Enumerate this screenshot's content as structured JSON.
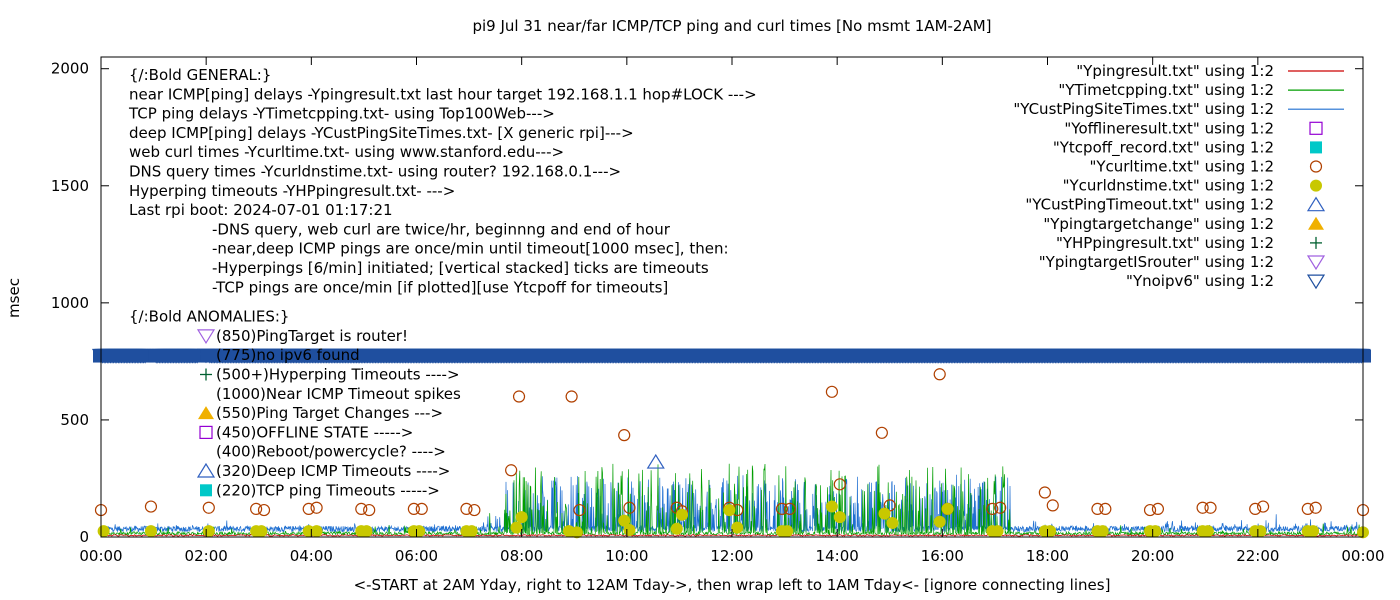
{
  "chart_data": {
    "type": "line",
    "title": "pi9 Jul 31  near/far ICMP/TCP ping and curl times [No msmt 1AM-2AM]",
    "xlabel": "<-START at 2AM Yday, right to 12AM Tday->, then wrap left to 1AM Tday<- [ignore connecting lines]",
    "ylabel": "msec",
    "xlim": [
      0,
      24
    ],
    "ylim": [
      0,
      2050
    ],
    "grid": false,
    "legend_position": "top-right",
    "x_ticks": [
      0,
      2,
      4,
      6,
      8,
      10,
      12,
      14,
      16,
      18,
      20,
      22,
      24
    ],
    "x_tick_labels": [
      "00:00",
      "02:00",
      "04:00",
      "06:00",
      "08:00",
      "10:00",
      "12:00",
      "14:00",
      "16:00",
      "18:00",
      "20:00",
      "22:00",
      "00:00"
    ],
    "y_ticks": [
      0,
      500,
      1000,
      1500,
      2000
    ],
    "y_tick_labels": [
      "0",
      "500",
      "1000",
      "1500",
      "2000"
    ],
    "legend": [
      {
        "label": "\"Ypingresult.txt\" using 1:2",
        "marker": "line",
        "color": "#cc0000"
      },
      {
        "label": "\"YTimetcpping.txt\" using 1:2",
        "marker": "line",
        "color": "#009e00"
      },
      {
        "label": "\"YCustPingSiteTimes.txt\" using 1:2",
        "marker": "line",
        "color": "#1f6fd1"
      },
      {
        "label": "\"Yofflineresult.txt\" using 1:2",
        "marker": "open-square",
        "color": "#9400d3"
      },
      {
        "label": "\"Ytcpoff_record.txt\" using 1:2",
        "marker": "filled-square",
        "color": "#00c8c8"
      },
      {
        "label": "\"Ycurltime.txt\" using 1:2",
        "marker": "open-circle",
        "color": "#b04000"
      },
      {
        "label": "\"Ycurldnstime.txt\" using 1:2",
        "marker": "filled-circle",
        "color": "#c8c800"
      },
      {
        "label": "\"YCustPingTimeout.txt\" using 1:2",
        "marker": "open-triangle-up",
        "color": "#3060c0"
      },
      {
        "label": "\"Ypingtargetchange\" using 1:2",
        "marker": "filled-triangle-up",
        "color": "#f0b000"
      },
      {
        "label": "\"YHPpingresult.txt\" using 1:2",
        "marker": "plus",
        "color": "#006030"
      },
      {
        "label": "\"YpingtargetISrouter\" using 1:2",
        "marker": "open-triangle-down",
        "color": "#a060e0"
      },
      {
        "label": "\"Ynoipv6\" using 1:2",
        "marker": "open-triangle-down",
        "color": "#1f4f9f"
      }
    ],
    "annotations": {
      "general_lines": [
        "{/:Bold GENERAL:}",
        "near ICMP[ping] delays -Ypingresult.txt last hour target 192.168.1.1 hop#LOCK --->",
        "TCP ping delays -YTimetcpping.txt- using Top100Web--->",
        "deep ICMP[ping] delays -YCustPingSiteTimes.txt- [X generic rpi]--->",
        "web curl times -Ycurltime.txt- using www.stanford.edu--->",
        "DNS query times -Ycurldnstime.txt- using router? 192.168.0.1--->",
        "Hyperping timeouts -YHPpingresult.txt- --->",
        "Last rpi boot: 2024-07-01 01:17:21"
      ],
      "notes": [
        "-DNS query, web curl are twice/hr, beginnng and end of hour",
        "-near,deep ICMP pings are once/min until timeout[1000 msec], then:",
        "  -Hyperpings [6/min] initiated; [vertical stacked] ticks are timeouts",
        "-TCP pings are once/min [if plotted][use Ytcpoff for timeouts]"
      ],
      "anomalies_title": "{/:Bold ANOMALIES:}",
      "anomalies": [
        {
          "text": "(850)PingTarget is router!",
          "marker": "open-triangle-down",
          "color": "#a060e0"
        },
        {
          "text": "(775)no ipv6 found",
          "marker": "open-triangle-down",
          "color": "#1f4f9f"
        },
        {
          "text": "(500+)Hyperping Timeouts ---->",
          "marker": "plus",
          "color": "#006030"
        },
        {
          "text": "(1000)Near ICMP Timeout spikes",
          "marker": "none",
          "color": "#cc0000"
        },
        {
          "text": "(550)Ping Target Changes --->",
          "marker": "filled-triangle-up",
          "color": "#f0b000"
        },
        {
          "text": "(450)OFFLINE STATE ----->",
          "marker": "open-square",
          "color": "#9400d3"
        },
        {
          "text": "(400)Reboot/powercycle? ---->",
          "marker": "none",
          "color": "#000000"
        },
        {
          "text": "(320)Deep ICMP Timeouts ---->",
          "marker": "open-triangle-up",
          "color": "#3060c0"
        },
        {
          "text": "(220)TCP ping Timeouts ----->",
          "marker": "filled-square",
          "color": "#00c8c8"
        }
      ]
    },
    "series": [
      {
        "name": "\"Ynoipv6\" using 1:2",
        "type": "scatter-dense",
        "y": 775,
        "x_range": [
          0,
          24
        ],
        "gaps": [
          [
            0.85,
            1.05
          ],
          [
            1.85,
            2.05
          ]
        ],
        "color": "#1f4f9f"
      },
      {
        "name": "\"YCustPingTimeout.txt\" using 1:2",
        "type": "scatter",
        "points": [
          [
            10.55,
            320
          ]
        ],
        "color": "#3060c0"
      },
      {
        "name": "\"Ycurltime.txt\" using 1:2",
        "type": "scatter",
        "color": "#b04000",
        "points": [
          [
            0,
            115
          ],
          [
            0.95,
            130
          ],
          [
            2.05,
            125
          ],
          [
            2.95,
            120
          ],
          [
            3.1,
            115
          ],
          [
            3.95,
            120
          ],
          [
            4.1,
            125
          ],
          [
            4.95,
            120
          ],
          [
            5.1,
            115
          ],
          [
            5.95,
            120
          ],
          [
            6.1,
            120
          ],
          [
            6.95,
            120
          ],
          [
            7.1,
            115
          ],
          [
            7.8,
            285
          ],
          [
            7.95,
            600
          ],
          [
            8.95,
            600
          ],
          [
            9.1,
            115
          ],
          [
            9.95,
            435
          ],
          [
            10.05,
            125
          ],
          [
            10.95,
            125
          ],
          [
            11.05,
            110
          ],
          [
            11.95,
            125
          ],
          [
            12.1,
            115
          ],
          [
            12.95,
            120
          ],
          [
            13.1,
            120
          ],
          [
            13.9,
            620
          ],
          [
            14.05,
            225
          ],
          [
            14.85,
            445
          ],
          [
            15.0,
            135
          ],
          [
            15.95,
            695
          ],
          [
            16.1,
            120
          ],
          [
            16.95,
            120
          ],
          [
            17.1,
            125
          ],
          [
            17.95,
            190
          ],
          [
            18.1,
            135
          ],
          [
            18.95,
            120
          ],
          [
            19.1,
            120
          ],
          [
            19.95,
            115
          ],
          [
            20.1,
            120
          ],
          [
            20.95,
            125
          ],
          [
            21.1,
            125
          ],
          [
            21.95,
            120
          ],
          [
            22.1,
            130
          ],
          [
            22.95,
            120
          ],
          [
            23.1,
            125
          ],
          [
            24.0,
            115
          ]
        ]
      },
      {
        "name": "\"Ycurldnstime.txt\" using 1:2",
        "type": "scatter",
        "color": "#c8c800",
        "points": [
          [
            0.05,
            25
          ],
          [
            0.95,
            25
          ],
          [
            2.05,
            25
          ],
          [
            2.95,
            25
          ],
          [
            3.05,
            25
          ],
          [
            3.95,
            25
          ],
          [
            4.1,
            25
          ],
          [
            4.95,
            25
          ],
          [
            5.05,
            25
          ],
          [
            5.95,
            25
          ],
          [
            6.05,
            25
          ],
          [
            6.95,
            25
          ],
          [
            7.05,
            25
          ],
          [
            7.9,
            40
          ],
          [
            8.0,
            85
          ],
          [
            8.9,
            25
          ],
          [
            9.05,
            20
          ],
          [
            9.95,
            70
          ],
          [
            10.05,
            30
          ],
          [
            10.95,
            35
          ],
          [
            11.05,
            95
          ],
          [
            11.95,
            115
          ],
          [
            12.1,
            40
          ],
          [
            12.95,
            25
          ],
          [
            13.05,
            25
          ],
          [
            13.9,
            130
          ],
          [
            14.05,
            85
          ],
          [
            14.9,
            100
          ],
          [
            15.05,
            60
          ],
          [
            15.95,
            65
          ],
          [
            16.1,
            120
          ],
          [
            16.95,
            25
          ],
          [
            17.05,
            25
          ],
          [
            17.95,
            25
          ],
          [
            18.05,
            25
          ],
          [
            18.95,
            25
          ],
          [
            19.05,
            25
          ],
          [
            19.95,
            25
          ],
          [
            20.05,
            25
          ],
          [
            20.95,
            25
          ],
          [
            21.05,
            25
          ],
          [
            21.95,
            25
          ],
          [
            22.05,
            25
          ],
          [
            22.95,
            25
          ],
          [
            23.05,
            25
          ],
          [
            24.0,
            20
          ]
        ]
      }
    ]
  }
}
